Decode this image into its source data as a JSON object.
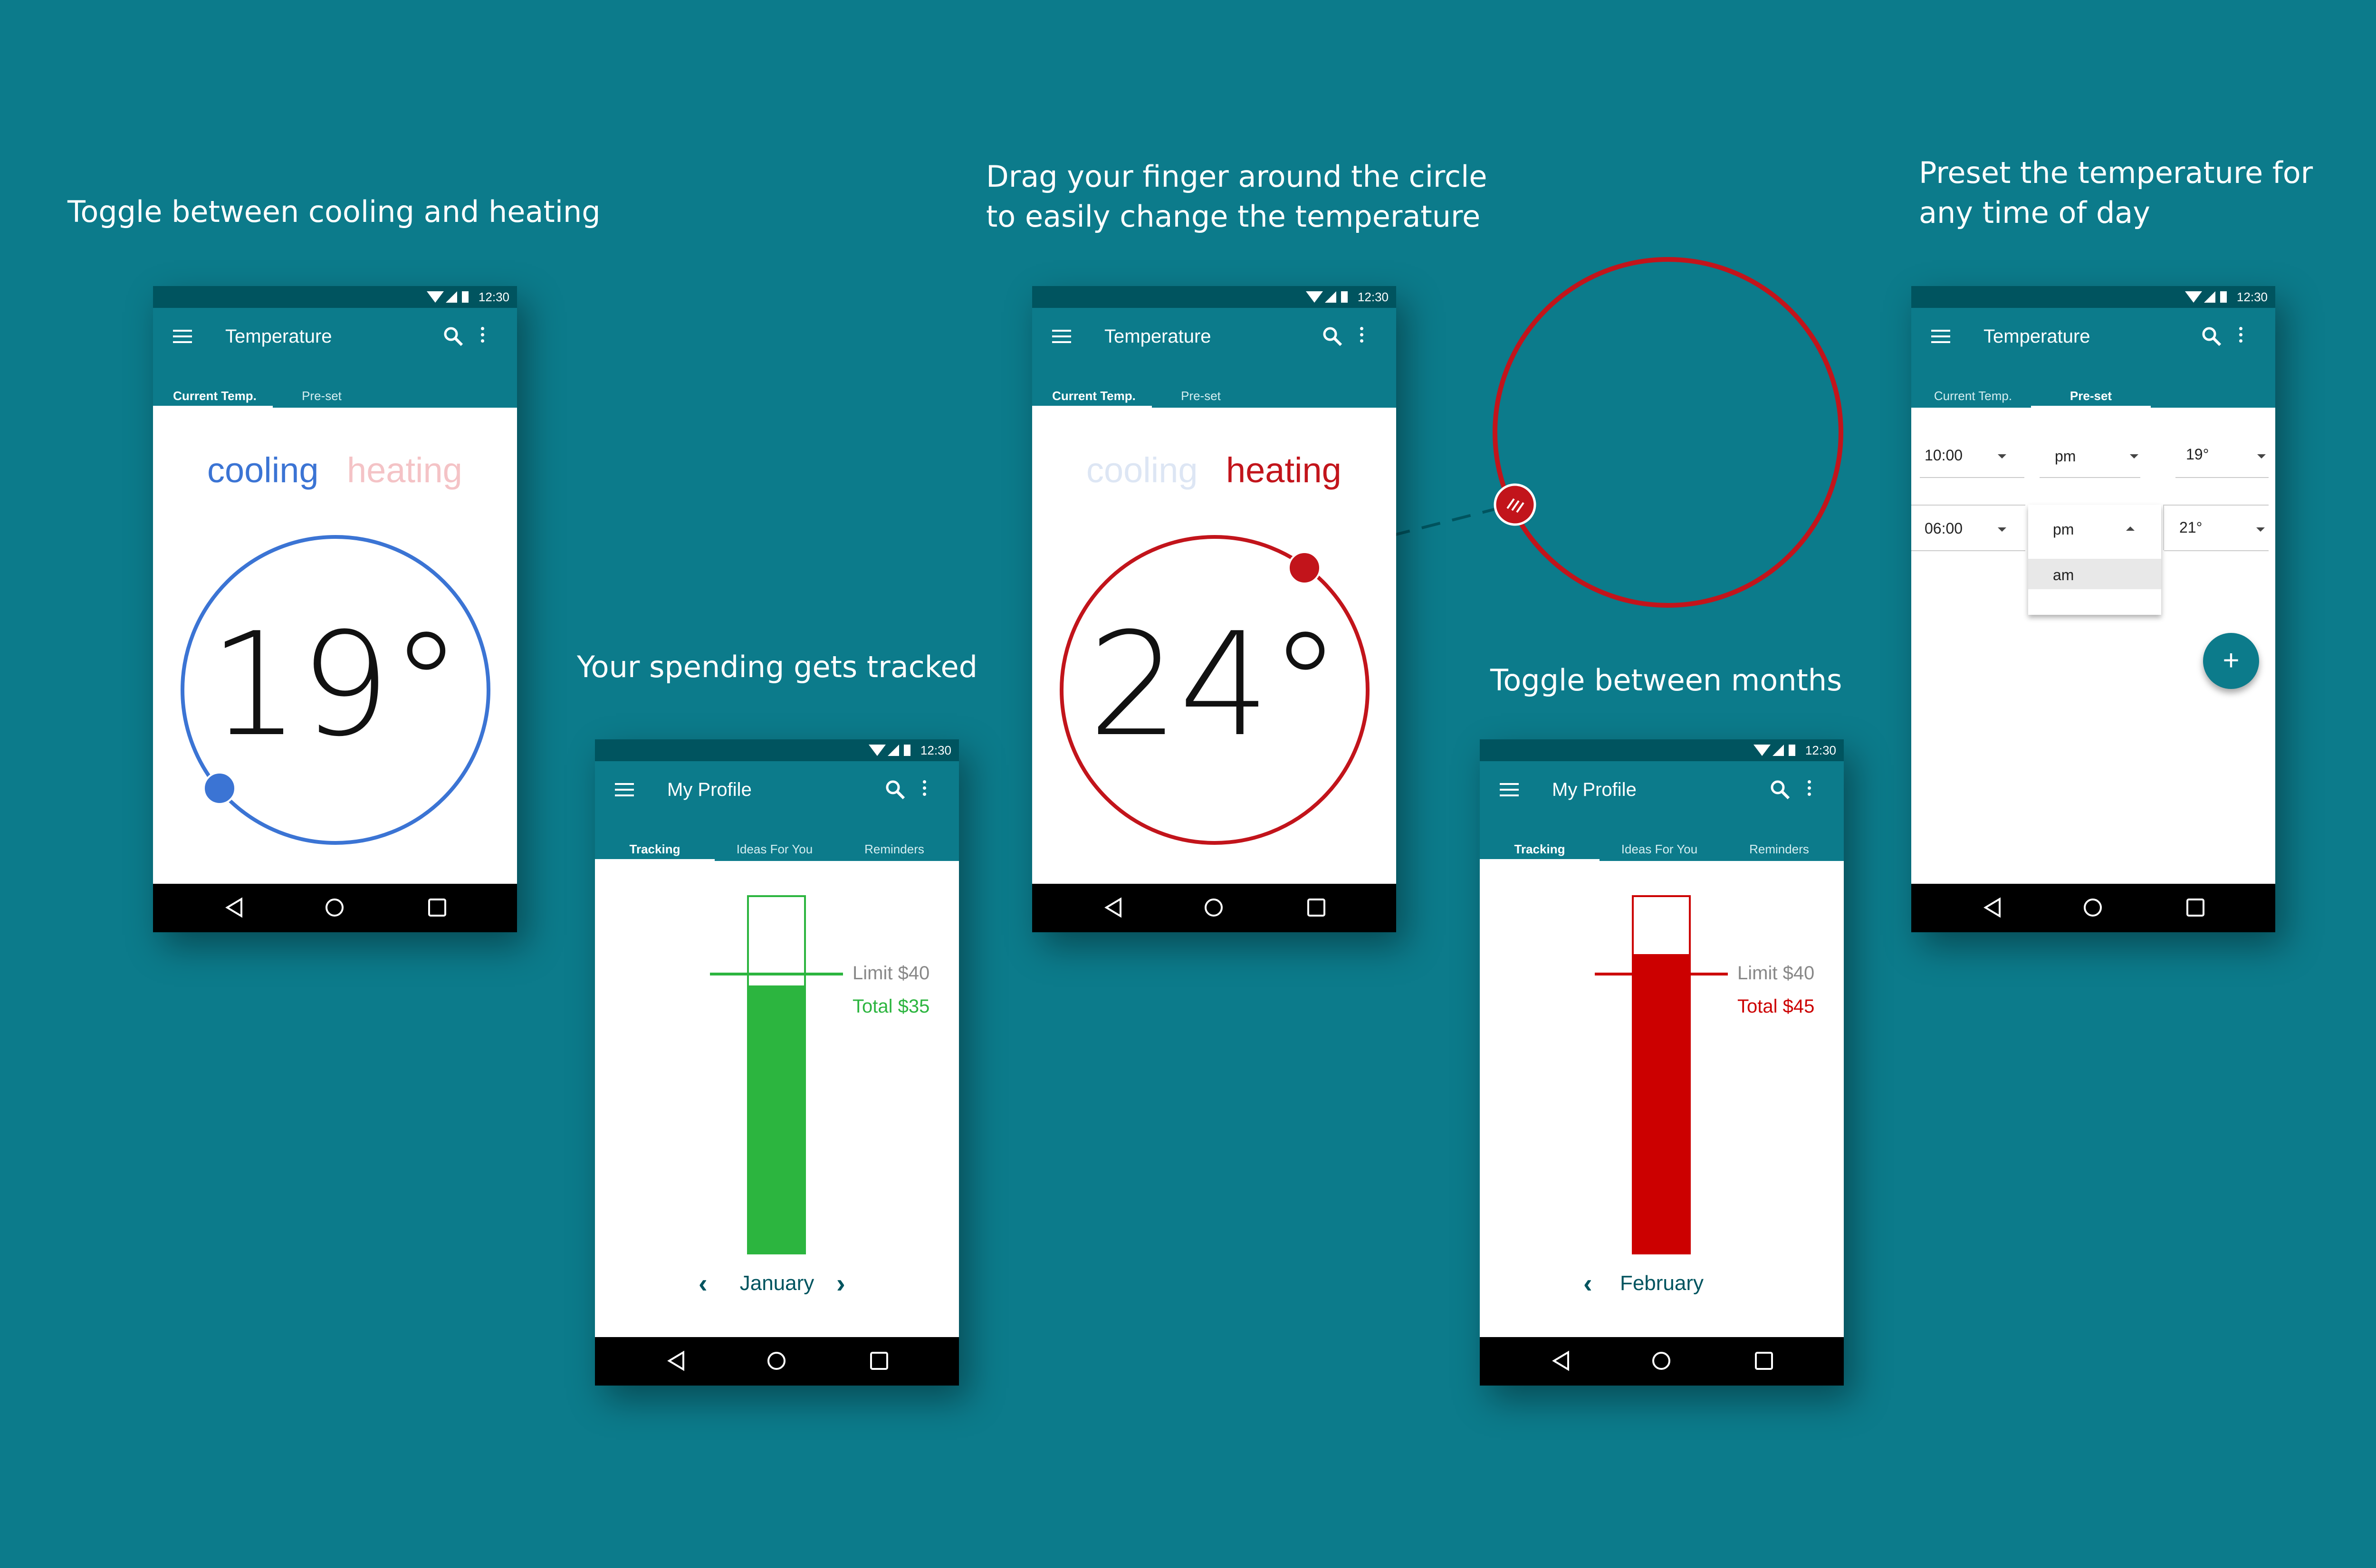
{
  "captions": {
    "c1": "Toggle between cooling and heating",
    "c2a": "Drag your finger around the circle",
    "c2b": "to easily change the temperature",
    "c3a": "Preset the temperature for",
    "c3b": "any time of day",
    "c4": "Your  spending gets tracked",
    "c5": "Toggle between months"
  },
  "status": {
    "time": "12:30"
  },
  "temp": {
    "title": "Temperature",
    "tab_current": "Current Temp.",
    "tab_preset": "Pre-set",
    "cooling": "cooling",
    "heating": "heating",
    "value_cool": "19°",
    "value_heat": "24°"
  },
  "preset": {
    "row1": {
      "time": "10:00",
      "ampm": "pm",
      "temp": "19°"
    },
    "row2": {
      "time": "06:00",
      "ampm": "pm",
      "temp": "21°"
    },
    "dropdown_option": "am",
    "fab": "+"
  },
  "profile": {
    "title": "My Profile",
    "tabs": [
      "Tracking",
      "Ideas For You",
      "Reminders"
    ],
    "january": {
      "limit": "Limit $40",
      "total": "Total $35",
      "month": "January",
      "limit_value": 40,
      "total_value": 35
    },
    "february": {
      "limit": "Limit $40",
      "total": "Total $45",
      "month": "February",
      "limit_value": 40,
      "total_value": 45
    }
  },
  "colors": {
    "teal": "#0c7b8b",
    "dark_teal": "#00545f",
    "cool": "#3b74d4",
    "heat": "#c2141b",
    "green": "#2cb53f",
    "budget_red": "#cc0000"
  },
  "icons": [
    "menu-icon",
    "search-icon",
    "more-vert-icon",
    "wifi-icon",
    "signal-icon",
    "battery-icon",
    "back-icon",
    "home-icon",
    "recents-icon"
  ]
}
